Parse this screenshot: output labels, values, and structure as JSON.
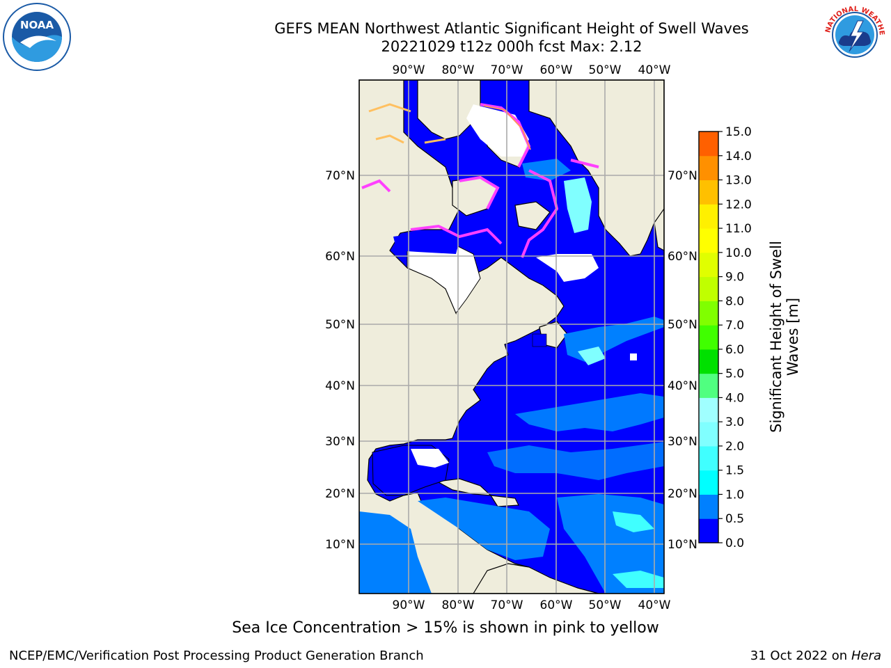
{
  "title": {
    "line1": "GEFS MEAN Northwest Atlantic Significant Height of Swell Waves",
    "line2": "20221029 t12z 000h fcst   Max: 2.12"
  },
  "logos": {
    "left": "noaa-logo",
    "right": "national-weather-service-logo",
    "left_text": "NOAA",
    "right_text": "NATIONAL WEATHER SERVICE"
  },
  "map": {
    "longitude_labels": [
      "90°W",
      "80°W",
      "70°W",
      "60°W",
      "50°W",
      "40°W"
    ],
    "latitude_labels": [
      "70°N",
      "60°N",
      "50°N",
      "40°N",
      "30°N",
      "20°N",
      "10°N"
    ],
    "land_color": "#efeddc",
    "ice_free_no_data_color": "#ffffff"
  },
  "colorbar": {
    "title": "Significant Height of Swell Waves [m]",
    "ticks": [
      "15.0",
      "14.0",
      "13.0",
      "12.0",
      "11.0",
      "10.0",
      "9.0",
      "8.0",
      "7.0",
      "6.0",
      "5.0",
      "4.0",
      "3.0",
      "2.0",
      "1.5",
      "1.0",
      "0.5",
      "0.0"
    ],
    "colors": [
      "#0000ff",
      "#0080ff",
      "#00ffff",
      "#40ffff",
      "#80ffff",
      "#a0ffff",
      "#50ff80",
      "#00e000",
      "#40ff00",
      "#80ff00",
      "#c0ff00",
      "#e0ff00",
      "#ffff00",
      "#fff000",
      "#ffc000",
      "#ff9000",
      "#ff6000",
      "#ff3000",
      "#ff0000"
    ]
  },
  "caption": "Sea Ice Concentration > 15% is shown in pink to yellow",
  "footer": {
    "left": "NCEP/EMC/Verification Post Processing Product Generation Branch",
    "right_prefix": "31 Oct 2022 on ",
    "right_host": "Hera"
  }
}
